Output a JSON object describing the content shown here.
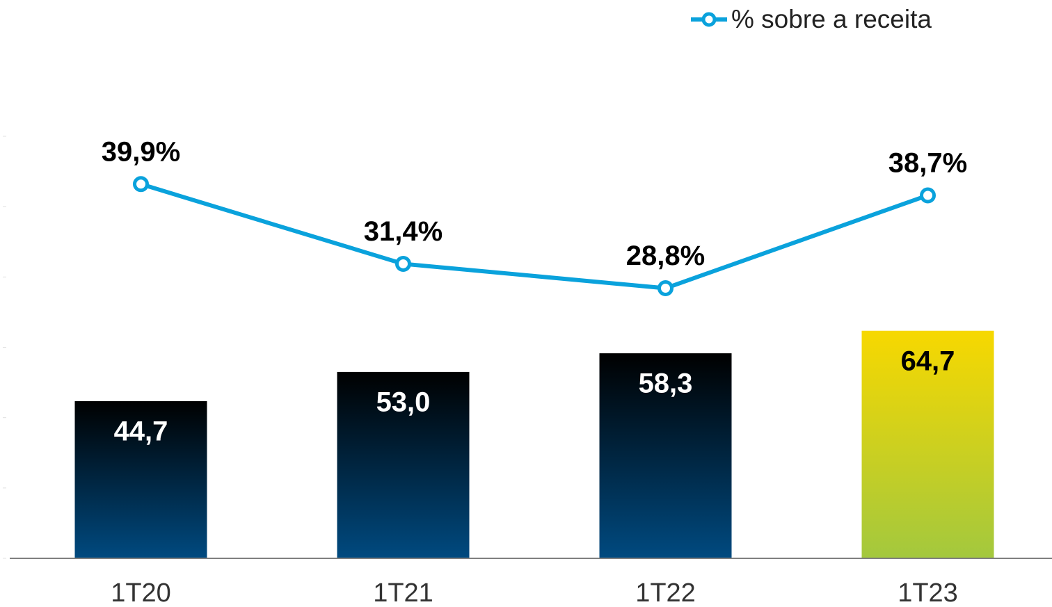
{
  "chart_data": {
    "type": "bar_line",
    "categories": [
      "1T20",
      "1T21",
      "1T22",
      "1T23"
    ],
    "series": [
      {
        "type": "bar",
        "values": [
          44.7,
          53.0,
          58.3,
          64.7
        ],
        "value_labels": [
          "44,7",
          "53,0",
          "58,3",
          "64,7"
        ],
        "gradients": [
          [
            "#000000",
            "#004a80"
          ],
          [
            "#000000",
            "#004a80"
          ],
          [
            "#000000",
            "#004a80"
          ],
          [
            "#f7d800",
            "#a3c83e"
          ]
        ],
        "label_colors": [
          "#ffffff",
          "#ffffff",
          "#ffffff",
          "#000000"
        ]
      },
      {
        "type": "line",
        "name": "% sobre a receita",
        "axis": "y2",
        "color": "#0aa2dc",
        "values": [
          39.9,
          31.4,
          28.8,
          38.7
        ],
        "value_labels": [
          "39,9%",
          "31,4%",
          "28,8%",
          "38,7%"
        ]
      }
    ],
    "ylim": [
      0,
      120
    ],
    "yticks": [
      0,
      20,
      40,
      60,
      80,
      100,
      120
    ],
    "y2lim": [
      0,
      45
    ],
    "legend": "top-right"
  }
}
